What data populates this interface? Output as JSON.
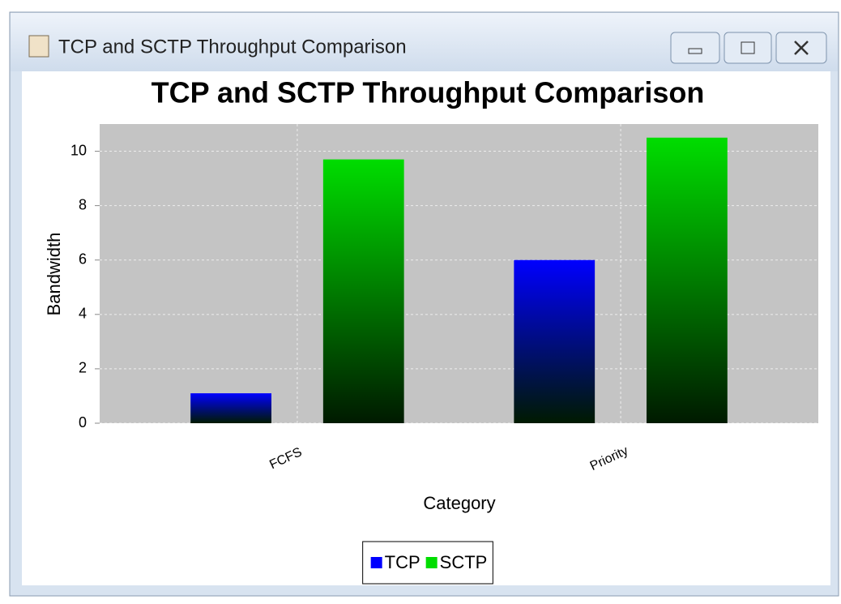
{
  "window": {
    "title": "TCP and SCTP Throughput Comparison"
  },
  "chart_data": {
    "type": "bar",
    "title": "TCP and SCTP Throughput Comparison",
    "x_label": "Category",
    "y_label": "Bandwidth",
    "categories": [
      "FCFS",
      "Priority"
    ],
    "series": [
      {
        "name": "TCP",
        "color": "#0000ff",
        "values": [
          1.1,
          6.0
        ]
      },
      {
        "name": "SCTP",
        "color": "#00dd00",
        "values": [
          9.7,
          10.5
        ]
      }
    ],
    "ylim": [
      0,
      11
    ],
    "yticks": [
      0,
      2,
      4,
      6,
      8,
      10
    ],
    "grid": true,
    "legend": "bottom"
  }
}
